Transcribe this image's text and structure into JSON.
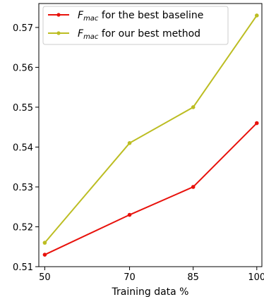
{
  "chart_data": {
    "type": "line",
    "title": "",
    "xlabel": "Training data %",
    "ylabel": "",
    "x": [
      50,
      70,
      85,
      100
    ],
    "xticks": [
      "50",
      "70",
      "85",
      "100"
    ],
    "yticks": [
      "0.51",
      "0.52",
      "0.53",
      "0.54",
      "0.55",
      "0.56",
      "0.57"
    ],
    "ylim": [
      0.51,
      0.576
    ],
    "grid": false,
    "legend_position": "top-left",
    "series": [
      {
        "name_main": "F",
        "name_sub": "mac",
        "name_rest": " for the best baseline",
        "color": "#e8120c",
        "values": [
          0.513,
          0.523,
          0.53,
          0.546
        ]
      },
      {
        "name_main": "F",
        "name_sub": "mac",
        "name_rest": " for our best method",
        "color": "#bcbd22",
        "values": [
          0.516,
          0.541,
          0.55,
          0.573
        ]
      }
    ]
  }
}
